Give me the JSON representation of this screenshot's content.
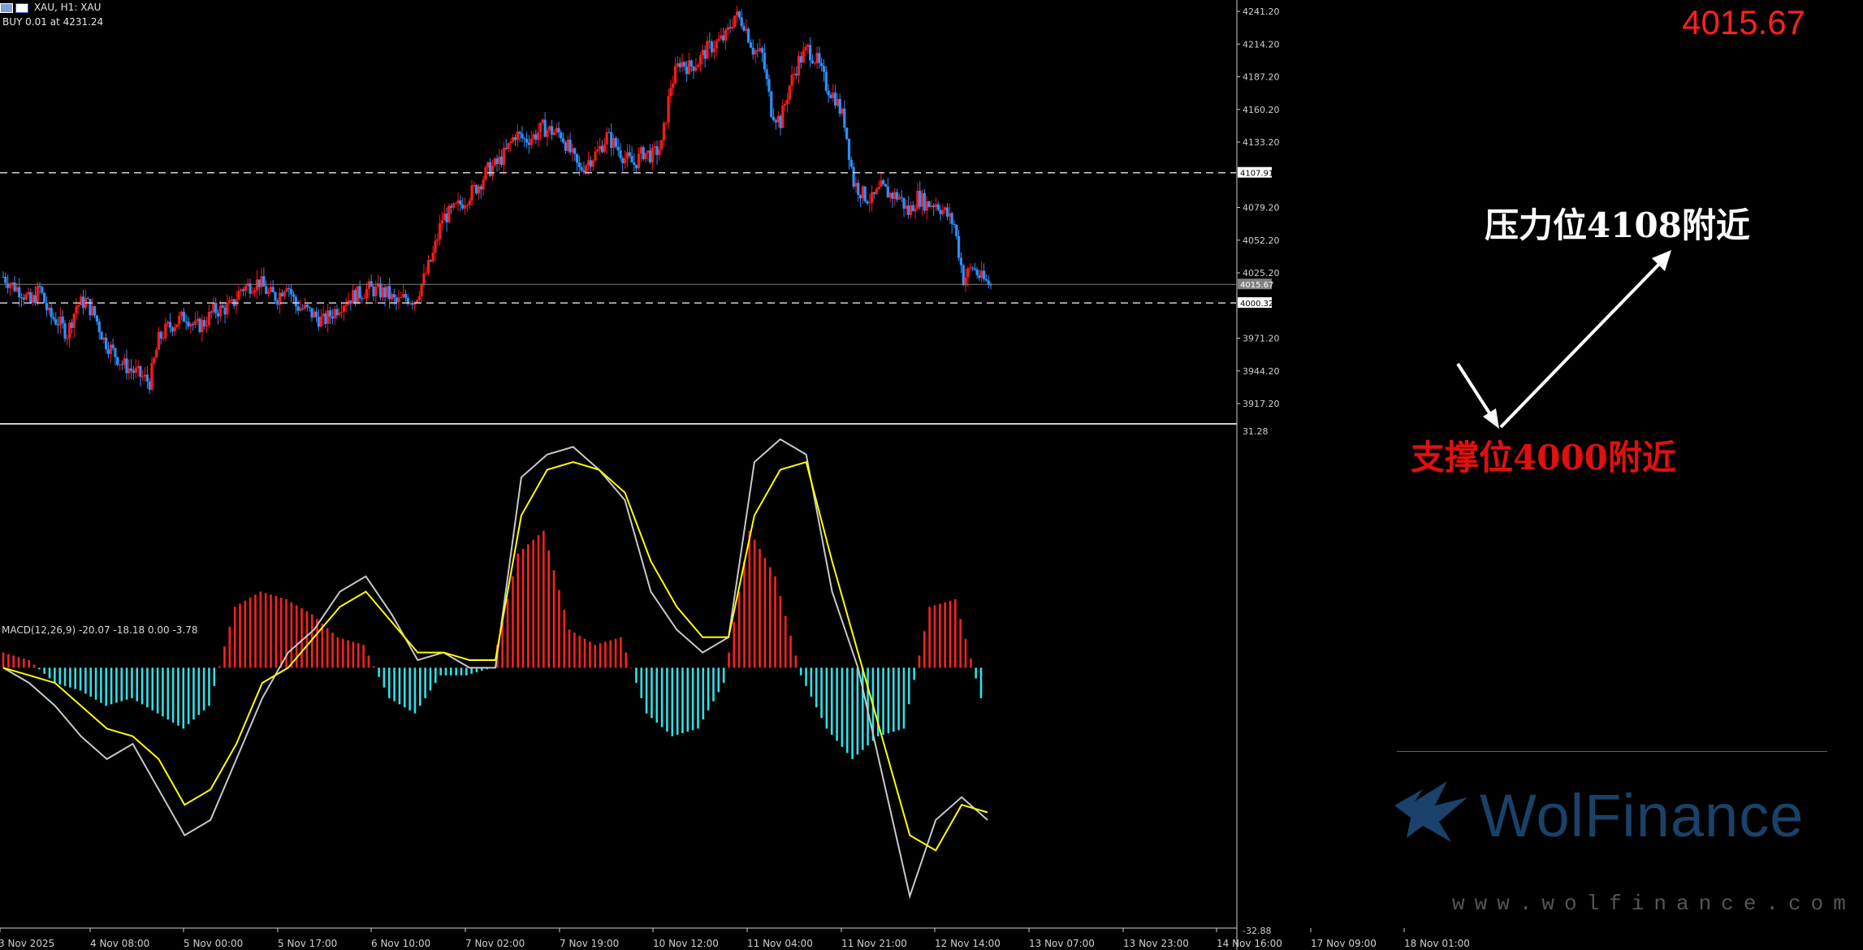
{
  "header": {
    "symbol_line": "XAU, H1:  XAU",
    "order_line": "BUY 0.01 at 4231.24"
  },
  "current_price_big": "4015.67",
  "annotations": {
    "resistance": "压力位4108附近",
    "support": "支撑位4000附近"
  },
  "watermark": {
    "brand": "WolFinance",
    "url": "www.wolfinance.com"
  },
  "colors": {
    "bull": "#ff1a1a",
    "bear": "#2e8fff",
    "hist_pos": "#ff2020",
    "hist_neg": "#30e0e8",
    "macd": "#c8c8c8",
    "signal": "#ffff00",
    "price_label": "#ff2020"
  },
  "chart_data": [
    {
      "type": "candlestick",
      "symbol": "XAU",
      "timeframe": "H1",
      "ylim": [
        3900,
        4250
      ],
      "y_ticks": [
        "4241.20",
        "4214.20",
        "4187.20",
        "4160.20",
        "4133.20",
        "4107.91",
        "4079.20",
        "4052.20",
        "4025.20",
        "4015.67",
        "4000.32",
        "3971.20",
        "3944.20",
        "3917.20"
      ],
      "x_ticks": [
        "3 Nov 2025",
        "4 Nov 08:00",
        "5 Nov 00:00",
        "5 Nov 17:00",
        "6 Nov 10:00",
        "7 Nov 02:00",
        "7 Nov 19:00",
        "10 Nov 12:00",
        "11 Nov 04:00",
        "11 Nov 21:00",
        "12 Nov 14:00",
        "13 Nov 07:00",
        "13 Nov 23:00",
        "14 Nov 16:00",
        "17 Nov 09:00",
        "18 Nov 01:00"
      ],
      "horizontal_lines": [
        {
          "value": 4107.91,
          "style": "dashed",
          "label": "4107.91"
        },
        {
          "value": 4000.32,
          "style": "dashed",
          "label": "4000.32"
        },
        {
          "value": 4015.67,
          "style": "solid",
          "label": "4015.67"
        }
      ],
      "close_path": [
        4022,
        4015,
        4010,
        4000,
        4012,
        3990,
        3985,
        3975,
        3998,
        4002,
        3990,
        3970,
        3960,
        3950,
        3945,
        3940,
        3935,
        3970,
        3980,
        3985,
        3990,
        3980,
        3984,
        3994,
        3995,
        3998,
        4012,
        4015,
        4018,
        4008,
        4005,
        4018,
        3998,
        3995,
        3990,
        3985,
        3992,
        4000,
        4005,
        4008,
        4012,
        4010,
        4008,
        4000,
        4005,
        4003,
        4020,
        4040,
        4070,
        4075,
        4082,
        4090,
        4098,
        4110,
        4115,
        4125,
        4140,
        4135,
        4138,
        4145,
        4142,
        4140,
        4125,
        4110,
        4118,
        4125,
        4138,
        4130,
        4120,
        4115,
        4125,
        4122,
        4130,
        4180,
        4200,
        4195,
        4200,
        4210,
        4215,
        4220,
        4238,
        4232,
        4210,
        4205,
        4160,
        4150,
        4180,
        4200,
        4210,
        4200,
        4180,
        4170,
        4150,
        4100,
        4090,
        4085,
        4095,
        4090,
        4088,
        4075,
        4088,
        4082,
        4083,
        4075,
        4065,
        4020,
        4030,
        4020,
        4015
      ],
      "macd": {
        "title": "MACD(12,26,9) -20.07 -18.18 0.00 -3.78",
        "params": "12,26,9",
        "macd_value": -20.07,
        "signal_value": -18.18,
        "hist_value": -3.78,
        "ylim": [
          -32.88,
          31.28
        ],
        "y_ticks": [
          "31.28",
          "-32.88"
        ],
        "macd_path": [
          0,
          -2,
          -5,
          -9,
          -12,
          -10,
          -16,
          -22,
          -20,
          -12,
          -4,
          2,
          5,
          10,
          12,
          7,
          1,
          2,
          0,
          0,
          25,
          28,
          29,
          26,
          22,
          10,
          5,
          2,
          4,
          27,
          30,
          28,
          10,
          0,
          -15,
          -30,
          -20,
          -17,
          -20
        ],
        "signal_path": [
          0,
          -1,
          -2,
          -5,
          -8,
          -9,
          -12,
          -18,
          -16,
          -10,
          -2,
          0,
          4,
          8,
          10,
          6,
          2,
          2,
          1,
          1,
          20,
          26,
          27,
          26,
          23,
          14,
          8,
          4,
          4,
          20,
          26,
          27,
          14,
          2,
          -10,
          -22,
          -24,
          -18,
          -19
        ],
        "hist_path": [
          2,
          1,
          -2,
          -3,
          -5,
          -4,
          -6,
          -8,
          -5,
          8,
          10,
          9,
          7,
          4,
          3,
          -4,
          -6,
          -1,
          -1,
          0,
          15,
          18,
          5,
          3,
          4,
          -6,
          -9,
          -8,
          -2,
          18,
          12,
          -1,
          -8,
          -12,
          -9,
          -8,
          8,
          9,
          -4
        ]
      }
    }
  ]
}
